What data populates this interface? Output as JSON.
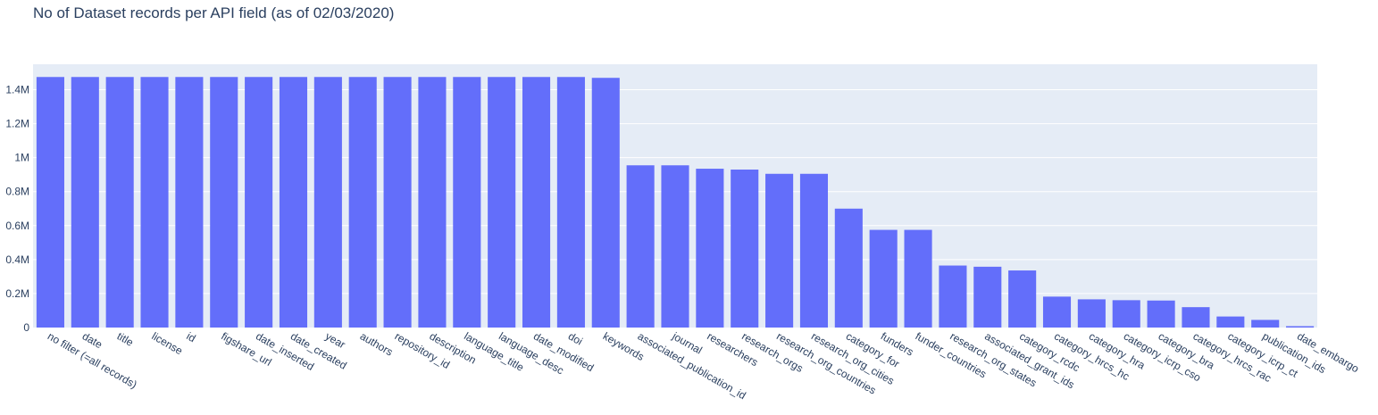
{
  "chart_data": {
    "type": "bar",
    "title": "No of Dataset records per API field (as of 02/03/2020)",
    "xlabel": "",
    "ylabel": "",
    "ylim": [
      0,
      1550000
    ],
    "yticks": [
      0,
      200000,
      400000,
      600000,
      800000,
      1000000,
      1200000,
      1400000
    ],
    "ytick_labels": [
      "0",
      "0.2M",
      "0.4M",
      "0.6M",
      "0.8M",
      "1M",
      "1.2M",
      "1.4M"
    ],
    "grid": true,
    "legend": "none",
    "bar_color": "#636efa",
    "plot_bg": "#e5ecf6",
    "categories": [
      "no filter (=all records)",
      "date",
      "title",
      "license",
      "id",
      "figshare_url",
      "date_inserted",
      "date_created",
      "year",
      "authors",
      "repository_id",
      "description",
      "language_title",
      "language_desc",
      "date_modified",
      "doi",
      "keywords",
      "associated_publication_id",
      "journal",
      "researchers",
      "research_orgs",
      "research_org_countries",
      "research_org_cities",
      "category_for",
      "funders",
      "funder_countries",
      "research_org_states",
      "associated_grant_ids",
      "category_rcdc",
      "category_hrcs_hc",
      "category_hra",
      "category_icrp_cso",
      "category_bra",
      "category_hrcs_rac",
      "category_icrp_ct",
      "publication_ids",
      "date_embargo"
    ],
    "values": [
      1475000,
      1475000,
      1475000,
      1475000,
      1475000,
      1475000,
      1475000,
      1475000,
      1475000,
      1475000,
      1475000,
      1475000,
      1475000,
      1475000,
      1475000,
      1475000,
      1470000,
      955000,
      955000,
      935000,
      930000,
      905000,
      905000,
      700000,
      575000,
      575000,
      365000,
      358000,
      336000,
      182000,
      166000,
      161000,
      159000,
      120000,
      65000,
      45000,
      8000
    ]
  }
}
